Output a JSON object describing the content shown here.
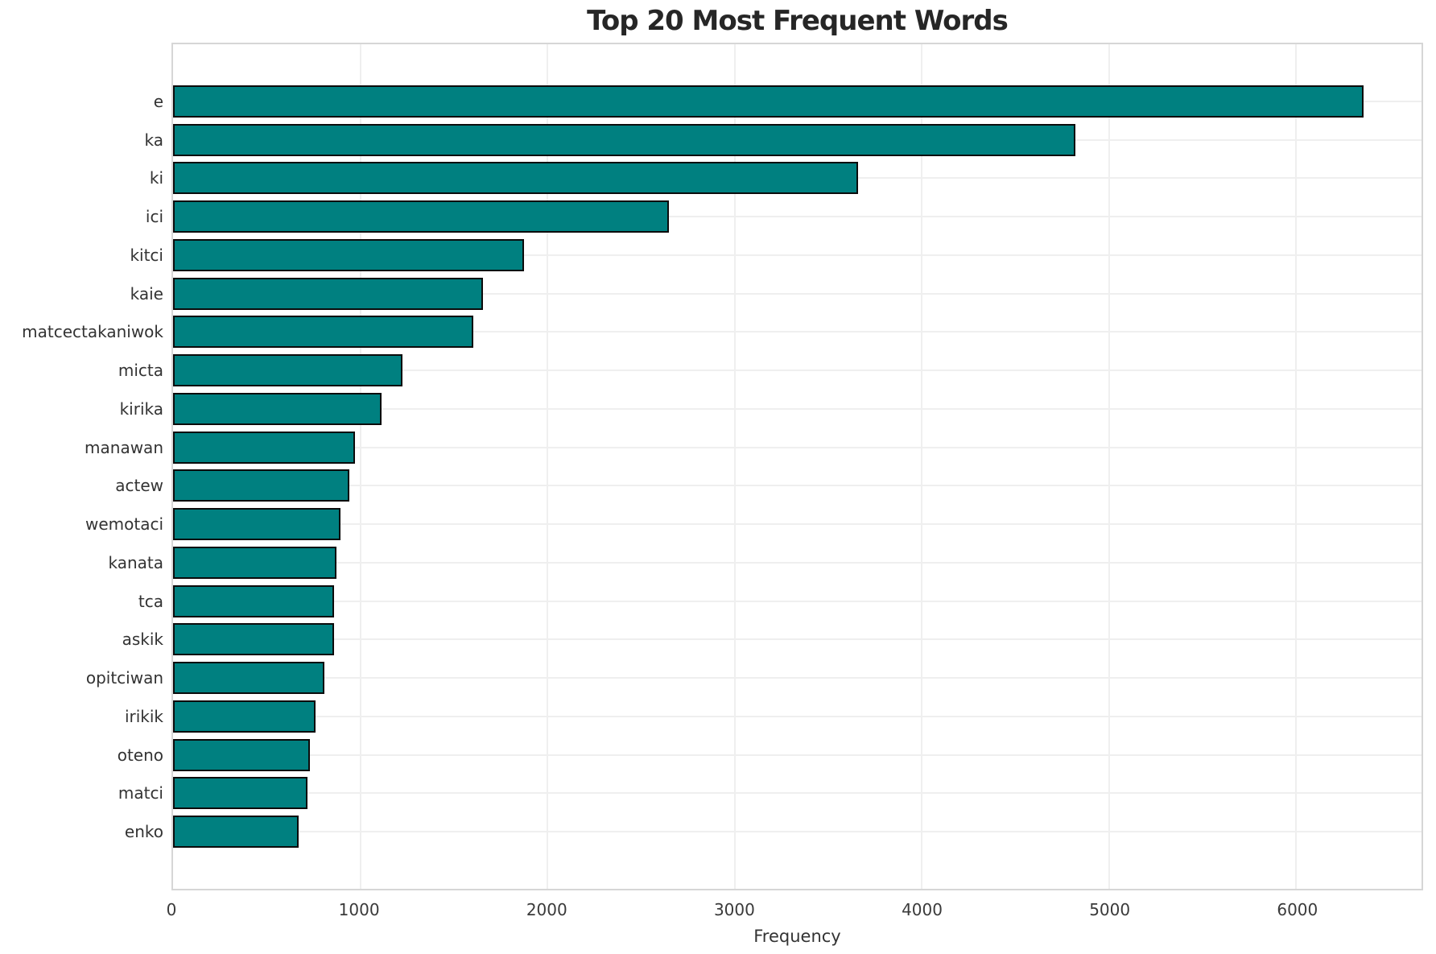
{
  "chart_data": {
    "type": "bar",
    "orientation": "horizontal",
    "title": "Top 20 Most Frequent Words",
    "xlabel": "Frequency",
    "ylabel": "",
    "categories": [
      "e",
      "ka",
      "ki",
      "ici",
      "kitci",
      "kaie",
      "matcectakaniwok",
      "micta",
      "kirika",
      "manawan",
      "actew",
      "wemotaci",
      "kanata",
      "tca",
      "askik",
      "opitciwan",
      "irikik",
      "oteno",
      "matci",
      "enko"
    ],
    "values": [
      6360,
      4820,
      3660,
      2650,
      1875,
      1655,
      1605,
      1225,
      1113,
      970,
      942,
      895,
      875,
      862,
      858,
      810,
      760,
      730,
      720,
      670
    ],
    "xticks": [
      0,
      1000,
      2000,
      3000,
      4000,
      5000,
      6000
    ],
    "xlim": [
      0,
      6670
    ],
    "grid": true,
    "legend": "none",
    "colors": {
      "bar_fill": "#008080",
      "bar_edge": "#0b0b0b",
      "grid": "#efefef",
      "spine": "#d6d6d6",
      "title_text": "#262626",
      "tick_text": "#3a3a3a",
      "background": "#ffffff"
    }
  }
}
